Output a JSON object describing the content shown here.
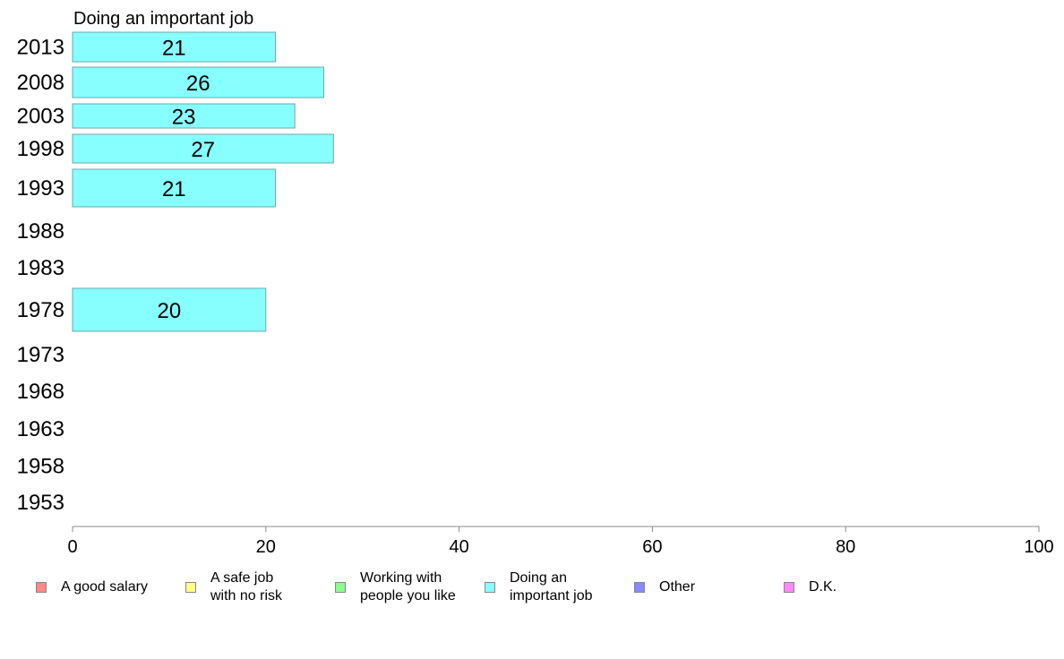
{
  "chart_data": {
    "type": "bar",
    "orientation": "horizontal",
    "title": "Doing an important job",
    "categories": [
      "2013",
      "2008",
      "2003",
      "1998",
      "1993",
      "1988",
      "1983",
      "1978",
      "1973",
      "1968",
      "1963",
      "1958",
      "1953"
    ],
    "series": [
      {
        "name": "Doing an important job",
        "values": [
          21,
          26,
          23,
          27,
          21,
          null,
          null,
          20,
          null,
          null,
          null,
          null,
          null
        ],
        "labels": [
          "21",
          "26",
          "23",
          "27",
          "21",
          null,
          null,
          "20",
          null,
          null,
          null,
          null,
          null
        ],
        "color": "#88ffff"
      }
    ],
    "xlim": [
      0,
      100
    ],
    "xticks": [
      "0",
      "20",
      "40",
      "60",
      "80",
      "100"
    ],
    "grid": false,
    "legend_position": "bottom"
  },
  "legend": [
    {
      "label": "A good salary",
      "color": "#ff8888"
    },
    {
      "label": "A safe job\nwith no risk",
      "color": "#ffff88"
    },
    {
      "label": "Working with\npeople you like",
      "color": "#88ff88"
    },
    {
      "label": "Doing an\nimportant job",
      "color": "#88ffff"
    },
    {
      "label": "Other",
      "color": "#8888ff"
    },
    {
      "label": "D.K.",
      "color": "#ff88ff"
    }
  ]
}
